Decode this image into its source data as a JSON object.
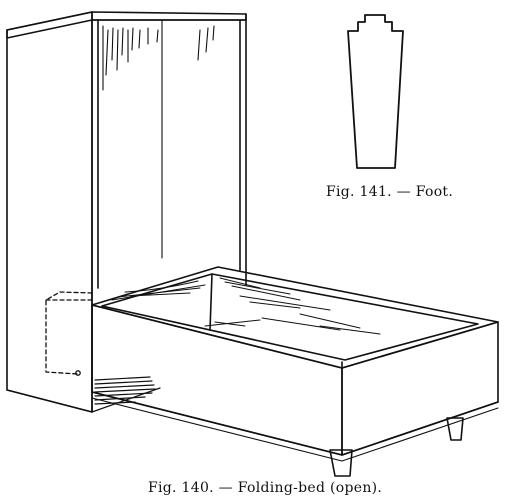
{
  "figures": [
    {
      "id": "fig141",
      "caption": "Fig. 141. — Foot."
    },
    {
      "id": "fig140",
      "caption": "Fig. 140. — Folding-bed (open)."
    }
  ],
  "style": {
    "ink": "#111111",
    "paper": "#ffffff"
  }
}
